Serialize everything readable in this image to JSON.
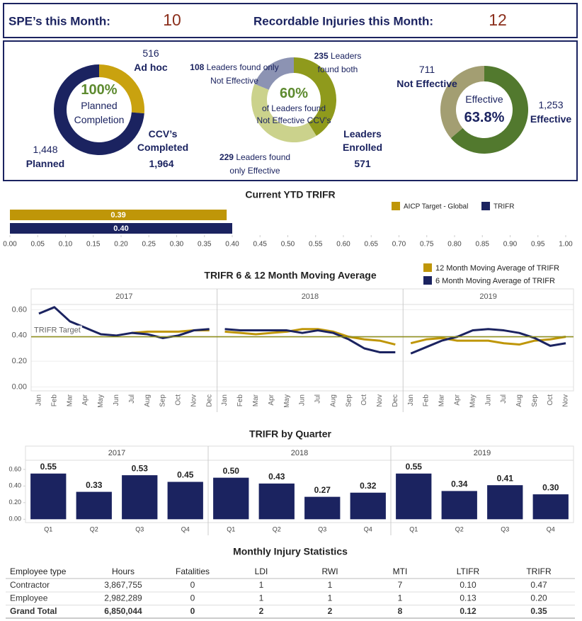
{
  "header": {
    "items": [
      {
        "label": "SPE’s this Month:",
        "value": "10"
      },
      {
        "label": "Recordable Injuries this Month:",
        "value": "12"
      }
    ]
  },
  "chart_data": [
    {
      "type": "donut",
      "categories": [
        "Ad hoc",
        "Planned"
      ],
      "values": [
        516,
        1448
      ],
      "value_labels": [
        "516",
        "1,448"
      ],
      "colors": [
        "#c9a20f",
        "#1b2360"
      ],
      "center_value": "100%",
      "center_text": "Planned Completion",
      "total_name": "CCV’s Completed",
      "total": "1,964"
    },
    {
      "type": "donut",
      "categories": [
        "Leaders found both",
        "Leaders found only Effective",
        "Leaders found only Not Effective"
      ],
      "values": [
        235,
        229,
        108
      ],
      "value_labels": [
        "235",
        "229",
        "108"
      ],
      "colors": [
        "#8f9a1c",
        "#cbd28c",
        "#8c93b3"
      ],
      "center_value": "60%",
      "center_text": "of Leaders found Not Effective CCV’s",
      "total_name": "Leaders Enrolled",
      "total": "571"
    },
    {
      "type": "donut",
      "categories": [
        "Effective",
        "Not Effective"
      ],
      "values": [
        1253,
        711
      ],
      "value_labels": [
        "1,253",
        "711"
      ],
      "colors": [
        "#52792e",
        "#a39e72"
      ],
      "center_value": "63.8%",
      "center_text": "Effective"
    },
    {
      "type": "hbar",
      "title": "Current YTD TRIFR",
      "categories": [
        "AICP Target - Global",
        "TRIFR"
      ],
      "values": [
        0.39,
        0.4
      ],
      "value_labels": [
        "0.39",
        "0.40"
      ],
      "colors": [
        "#bf9608",
        "#1b2360"
      ],
      "xlim": [
        0,
        1
      ],
      "xticks": [
        {
          "value": 0,
          "label": "0.00"
        },
        {
          "value": 0.05,
          "label": "0.05"
        },
        {
          "value": 0.1,
          "label": "0.10"
        },
        {
          "value": 0.15,
          "label": "0.15"
        },
        {
          "value": 0.2,
          "label": "0.20"
        },
        {
          "value": 0.25,
          "label": "0.25"
        },
        {
          "value": 0.3,
          "label": "0.30"
        },
        {
          "value": 0.35,
          "label": "0.35"
        },
        {
          "value": 0.4,
          "label": "0.40"
        },
        {
          "value": 0.45,
          "label": "0.45"
        },
        {
          "value": 0.5,
          "label": "0.50"
        },
        {
          "value": 0.55,
          "label": "0.55"
        },
        {
          "value": 0.6,
          "label": "0.60"
        },
        {
          "value": 0.65,
          "label": "0.65"
        },
        {
          "value": 0.7,
          "label": "0.70"
        },
        {
          "value": 0.75,
          "label": "0.75"
        },
        {
          "value": 0.8,
          "label": "0.80"
        },
        {
          "value": 0.85,
          "label": "0.85"
        },
        {
          "value": 0.9,
          "label": "0.90"
        },
        {
          "value": 0.95,
          "label": "0.95"
        },
        {
          "value": 1,
          "label": "1.00"
        }
      ],
      "legend": "top-right"
    },
    {
      "type": "line",
      "title": "TRIFR 6 & 12 Month Moving Average",
      "series": [
        {
          "name": "12 Month Moving Average of TRIFR",
          "color": "#bf9608"
        },
        {
          "name": "6 Month Moving Average of TRIFR",
          "color": "#1b2360"
        }
      ],
      "panels": [
        {
          "label": "2017",
          "categories": [
            "Jan",
            "Feb",
            "Mar",
            "Apr",
            "May",
            "Jun",
            "Jul",
            "Aug",
            "Sep",
            "Oct",
            "Nov",
            "Dec"
          ],
          "series": [
            {
              "values": [
                null,
                null,
                null,
                null,
                null,
                null,
                0.42,
                0.43,
                0.43,
                0.43,
                0.44,
                0.44
              ]
            },
            {
              "values": [
                0.57,
                0.62,
                0.51,
                0.46,
                0.41,
                0.4,
                0.42,
                0.41,
                0.38,
                0.4,
                0.44,
                0.45
              ]
            }
          ]
        },
        {
          "label": "2018",
          "categories": [
            "Jan",
            "Feb",
            "Mar",
            "Apr",
            "May",
            "Jun",
            "Jul",
            "Aug",
            "Sep",
            "Oct",
            "Nov",
            "Dec"
          ],
          "series": [
            {
              "values": [
                0.43,
                0.42,
                0.41,
                0.42,
                0.43,
                0.45,
                0.45,
                0.43,
                0.39,
                0.37,
                0.36,
                0.33
              ]
            },
            {
              "values": [
                0.45,
                0.44,
                0.44,
                0.44,
                0.44,
                0.42,
                0.44,
                0.42,
                0.37,
                0.3,
                0.27,
                0.27
              ]
            }
          ]
        },
        {
          "label": "2019",
          "categories": [
            "Jan",
            "Feb",
            "Mar",
            "Apr",
            "May",
            "Jun",
            "Jul",
            "Aug",
            "Sep",
            "Oct",
            "Nov"
          ],
          "series": [
            {
              "values": [
                0.34,
                0.37,
                0.38,
                0.36,
                0.36,
                0.36,
                0.34,
                0.33,
                0.36,
                0.37,
                0.39
              ]
            },
            {
              "values": [
                0.26,
                0.31,
                0.36,
                0.39,
                0.44,
                0.45,
                0.44,
                0.42,
                0.38,
                0.32,
                0.34
              ]
            }
          ]
        }
      ],
      "reference_line": {
        "label": "TRIFR Target",
        "value": 0.39,
        "color": "#8a8a14"
      },
      "ylim": [
        -0.03,
        0.63
      ],
      "yticks": [
        {
          "value": 0,
          "label": "0.00"
        },
        {
          "value": 0.2,
          "label": "0.20"
        },
        {
          "value": 0.4,
          "label": "0.40"
        },
        {
          "value": 0.6,
          "label": "0.60"
        }
      ],
      "grid": true,
      "legend": "top-right"
    },
    {
      "type": "bar",
      "title": "TRIFR by Quarter",
      "color": "#1b2360",
      "panels": [
        {
          "label": "2017",
          "categories": [
            "Q1",
            "Q2",
            "Q3",
            "Q4"
          ],
          "values": [
            0.55,
            0.33,
            0.53,
            0.45
          ],
          "value_labels": [
            "0.55",
            "0.33",
            "0.53",
            "0.45"
          ]
        },
        {
          "label": "2018",
          "categories": [
            "Q1",
            "Q2",
            "Q3",
            "Q4"
          ],
          "values": [
            0.5,
            0.43,
            0.27,
            0.32
          ],
          "value_labels": [
            "0.50",
            "0.43",
            "0.27",
            "0.32"
          ]
        },
        {
          "label": "2019",
          "categories": [
            "Q1",
            "Q2",
            "Q3",
            "Q4"
          ],
          "values": [
            0.55,
            0.34,
            0.41,
            0.3
          ],
          "value_labels": [
            "0.55",
            "0.34",
            "0.41",
            "0.30"
          ]
        }
      ],
      "ylim": [
        -0.04,
        0.71
      ],
      "yticks": [
        {
          "value": 0,
          "label": "0.00"
        },
        {
          "value": 0.2,
          "label": "0.20"
        },
        {
          "value": 0.4,
          "label": "0.40"
        },
        {
          "value": 0.6,
          "label": "0.60"
        }
      ]
    }
  ],
  "table": {
    "title": "Monthly Injury Statistics",
    "columns": [
      "Employee type",
      "Hours",
      "Fatalities",
      "LDI",
      "RWI",
      "MTI",
      "LTIFR",
      "TRIFR"
    ],
    "rows": [
      [
        "Contractor",
        "3,867,755",
        "0",
        "1",
        "1",
        "7",
        "0.10",
        "0.47"
      ],
      [
        "Employee",
        "2,982,289",
        "0",
        "1",
        "1",
        "1",
        "0.13",
        "0.20"
      ],
      [
        "Grand Total",
        "6,850,044",
        "0",
        "2",
        "2",
        "8",
        "0.12",
        "0.35"
      ]
    ]
  }
}
